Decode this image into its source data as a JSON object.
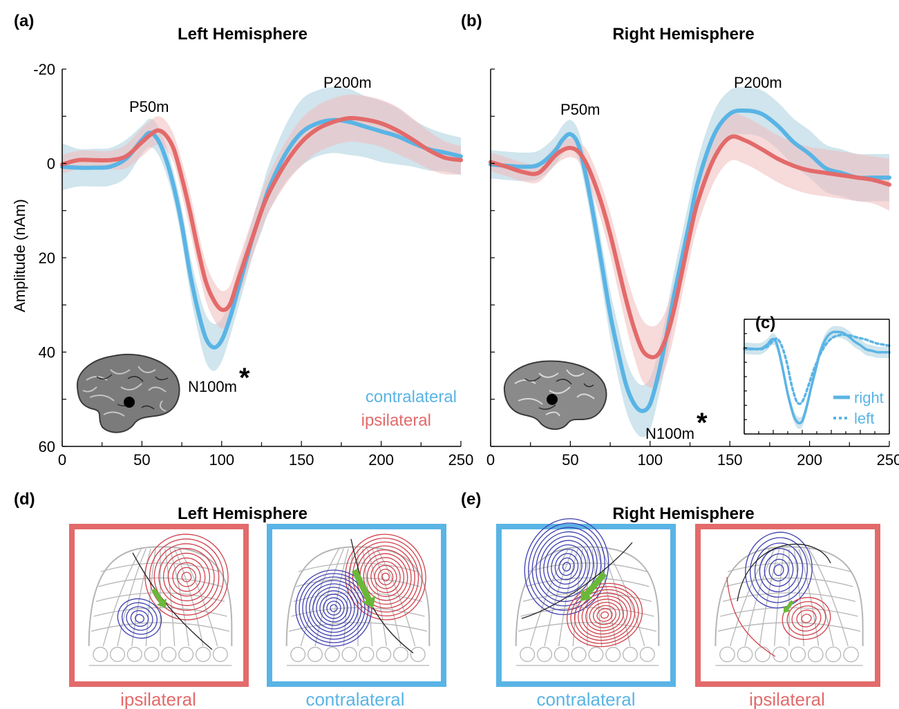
{
  "colors": {
    "contralateral": "#5ab4e5",
    "ipsilateral": "#e36a6a",
    "contralateral_band": "#a9cfdf",
    "ipsilateral_band": "#f0bcbc",
    "positive_contour": "#d0404a",
    "negative_contour": "#3d3db0",
    "dipole": "#6ab83a"
  },
  "panels": {
    "a": "(a)",
    "b": "(b)",
    "c": "(c)",
    "d": "(d)",
    "e": "(e)"
  },
  "titles": {
    "left": "Left Hemisphere",
    "right": "Right Hemisphere",
    "left_maps": "Left Hemisphere",
    "right_maps": "Right Hemisphere"
  },
  "annotations": {
    "left_p50": "P50m",
    "left_p200": "P200m",
    "left_n100": "N100m",
    "left_star": "*",
    "right_p50": "P50m",
    "right_p200": "P200m",
    "right_n100": "N100m",
    "right_star": "*"
  },
  "legend": {
    "contralateral": "contralateral",
    "ipsilateral": "ipsilateral",
    "inset_right": "right",
    "inset_left": "left"
  },
  "map_captions": {
    "d1": "ipsilateral",
    "d2": "contralateral",
    "e1": "contralateral",
    "e2": "ipsilateral"
  },
  "chart_data": [
    {
      "type": "line",
      "title": "Left Hemisphere",
      "xlabel": "",
      "ylabel": "Amplitude (nAm)",
      "xlim": [
        0,
        250
      ],
      "ylim": [
        -20,
        60
      ],
      "y_inverted": true,
      "x_ticks": [
        0,
        50,
        100,
        150,
        200,
        250
      ],
      "y_ticks": [
        -20,
        0,
        20,
        40,
        60
      ],
      "series": [
        {
          "name": "contralateral",
          "x": [
            0,
            10,
            20,
            30,
            40,
            50,
            55,
            60,
            65,
            70,
            75,
            80,
            85,
            90,
            95,
            100,
            105,
            110,
            115,
            120,
            125,
            130,
            140,
            150,
            160,
            170,
            180,
            190,
            200,
            210,
            220,
            230,
            240,
            250
          ],
          "values": [
            0.7,
            0.9,
            0.9,
            0.7,
            -1,
            -5,
            -6.5,
            -5,
            -1,
            5,
            13,
            23,
            31,
            37,
            39,
            37.5,
            33,
            27,
            21,
            15,
            10,
            5,
            -2,
            -6.5,
            -8.5,
            -9.2,
            -8.8,
            -7.8,
            -6.8,
            -5.8,
            -4.3,
            -3,
            -2.3,
            -1.5
          ],
          "band": [
            5,
            4,
            4,
            4,
            4,
            3,
            3,
            3,
            3,
            3,
            3.5,
            4,
            4.5,
            5,
            5,
            4.5,
            4,
            4,
            4,
            4,
            4.5,
            5,
            6,
            7,
            7,
            7,
            7,
            6.5,
            6.5,
            6,
            5,
            4.5,
            4,
            4
          ]
        },
        {
          "name": "ipsilateral",
          "x": [
            0,
            10,
            20,
            30,
            40,
            50,
            55,
            60,
            65,
            70,
            75,
            80,
            85,
            90,
            95,
            100,
            105,
            110,
            115,
            120,
            125,
            130,
            140,
            150,
            160,
            170,
            180,
            190,
            200,
            210,
            220,
            230,
            240,
            250
          ],
          "values": [
            0.2,
            -0.7,
            -0.7,
            -0.7,
            -1.5,
            -4.5,
            -6,
            -7,
            -6,
            -3,
            3,
            10,
            18,
            25,
            29,
            31,
            30,
            25,
            20,
            15,
            10,
            6,
            0,
            -4.5,
            -7.3,
            -8.8,
            -9.6,
            -9.3,
            -8.5,
            -7,
            -5,
            -2.8,
            -1.2,
            -0.7
          ],
          "band": [
            2,
            2,
            2,
            2,
            2.5,
            3,
            3,
            3,
            3,
            3,
            3.5,
            4,
            4,
            4,
            4,
            4,
            4,
            4,
            4,
            4,
            4,
            4,
            4.5,
            5,
            5,
            5,
            5,
            5,
            5,
            5,
            4.5,
            4,
            3.5,
            3
          ]
        }
      ]
    },
    {
      "type": "line",
      "title": "Right Hemisphere",
      "xlabel": "",
      "ylabel": "",
      "xlim": [
        0,
        250
      ],
      "ylim": [
        -20,
        60
      ],
      "y_inverted": true,
      "x_ticks": [
        0,
        50,
        100,
        150,
        200,
        250
      ],
      "series": [
        {
          "name": "contralateral",
          "x": [
            0,
            10,
            20,
            30,
            40,
            45,
            50,
            55,
            60,
            65,
            70,
            75,
            80,
            85,
            90,
            95,
            100,
            105,
            110,
            115,
            120,
            125,
            130,
            140,
            150,
            160,
            170,
            180,
            190,
            200,
            210,
            220,
            230,
            240,
            250
          ],
          "values": [
            0.2,
            0.5,
            0.7,
            0.3,
            -2.5,
            -5,
            -6.2,
            -4,
            3,
            12,
            22,
            32,
            40,
            47,
            51,
            52.5,
            51,
            45,
            37,
            28,
            20,
            12,
            4,
            -6,
            -10.5,
            -11.2,
            -10.5,
            -8,
            -4.5,
            -2,
            1,
            2,
            3,
            3,
            3
          ],
          "band": [
            3,
            3,
            3,
            3,
            3,
            3,
            3,
            3,
            3.5,
            4,
            4.5,
            5,
            5.5,
            5.5,
            5.5,
            5.5,
            5.5,
            5,
            5,
            5,
            5,
            5,
            5,
            5,
            5,
            5,
            5,
            5,
            5,
            5,
            5,
            5,
            5,
            5,
            5
          ]
        },
        {
          "name": "ipsilateral",
          "x": [
            0,
            10,
            20,
            30,
            40,
            45,
            50,
            55,
            60,
            65,
            70,
            75,
            80,
            85,
            90,
            95,
            100,
            105,
            110,
            115,
            120,
            125,
            130,
            140,
            150,
            160,
            170,
            180,
            190,
            200,
            210,
            220,
            230,
            240,
            250
          ],
          "values": [
            -0.3,
            0.7,
            1.8,
            2,
            -1.5,
            -2.8,
            -3.3,
            -2.5,
            0,
            4,
            9,
            15,
            22,
            29,
            35,
            39.5,
            41,
            40.5,
            37,
            31,
            23,
            15,
            8,
            -1,
            -5.5,
            -4.8,
            -3,
            -1,
            0.5,
            1.5,
            2,
            2.5,
            3,
            3.5,
            4.5
          ],
          "band": [
            2,
            2,
            2,
            2,
            2,
            2,
            2,
            2,
            3,
            3.5,
            4,
            4.5,
            5,
            5.5,
            6,
            6.5,
            6.5,
            6.5,
            6,
            5.5,
            5,
            5,
            5,
            5,
            5,
            5,
            5,
            5,
            5,
            5,
            5,
            5,
            5,
            5,
            5.5
          ]
        }
      ]
    },
    {
      "type": "line",
      "title": "(c)",
      "xlim": [
        0,
        250
      ],
      "ylim": [
        -20,
        60
      ],
      "y_inverted": true,
      "series": [
        {
          "name": "right",
          "x": [
            0,
            10,
            20,
            30,
            40,
            45,
            50,
            55,
            60,
            65,
            70,
            75,
            80,
            85,
            90,
            95,
            100,
            105,
            110,
            115,
            120,
            125,
            130,
            140,
            150,
            160,
            170,
            180,
            190,
            200,
            210,
            220,
            230,
            240,
            250
          ],
          "values": [
            0.2,
            0.5,
            0.7,
            0.3,
            -2.5,
            -5,
            -6.2,
            -4,
            3,
            12,
            22,
            32,
            40,
            47,
            51,
            52.5,
            51,
            45,
            37,
            28,
            20,
            12,
            4,
            -6,
            -10.5,
            -11.2,
            -10.5,
            -8,
            -4.5,
            -2,
            1,
            2,
            3,
            3,
            3
          ]
        },
        {
          "name": "left",
          "x": [
            0,
            10,
            20,
            30,
            40,
            50,
            55,
            60,
            65,
            70,
            75,
            80,
            85,
            90,
            95,
            100,
            105,
            110,
            115,
            120,
            125,
            130,
            140,
            150,
            160,
            170,
            180,
            190,
            200,
            210,
            220,
            230,
            240,
            250
          ],
          "values": [
            0.7,
            0.9,
            0.9,
            0.7,
            -1,
            -5,
            -6.5,
            -5,
            -1,
            5,
            13,
            23,
            31,
            37,
            39,
            37.5,
            33,
            27,
            21,
            15,
            10,
            5,
            -2,
            -6.5,
            -8.5,
            -9.2,
            -8.8,
            -7.8,
            -6.8,
            -5.8,
            -4.3,
            -3,
            -2.3,
            -1.5
          ]
        }
      ]
    }
  ]
}
